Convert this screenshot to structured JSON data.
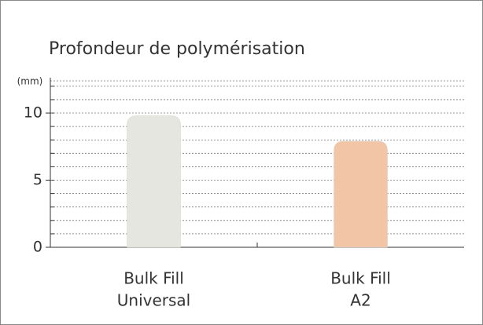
{
  "chart_data": {
    "type": "bar",
    "title": "Profondeur de polymérisation",
    "y_unit": "(mm)",
    "categories": [
      [
        "Bulk Fill",
        "Universal"
      ],
      [
        "Bulk Fill",
        "A2"
      ]
    ],
    "series": [
      {
        "name": null,
        "values": [
          9.8,
          7.9
        ]
      }
    ],
    "colors": [
      "#e4e6df",
      "#f1c5a6"
    ],
    "ylim": [
      0,
      12.4
    ],
    "yticks": [
      0,
      5,
      10
    ],
    "minor_yticks": [
      1,
      2,
      3,
      4,
      6,
      7,
      8,
      9,
      11,
      12
    ],
    "grid": true
  }
}
